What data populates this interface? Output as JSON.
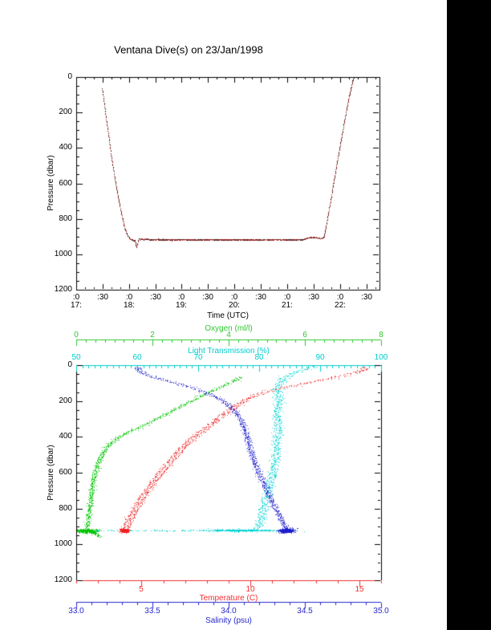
{
  "page": {
    "background": "#ffffff",
    "right_margin_color": "#000000"
  },
  "chart_data": [
    {
      "type": "line",
      "title": "Ventana Dive(s) on 23/Jan/1998",
      "xlabel": "Time (UTC)",
      "ylabel": "Pressure (dbar)",
      "x_range_hours": [
        17.0,
        22.75
      ],
      "y_range": [
        0,
        1200
      ],
      "y_axis_reversed": true,
      "y_major_ticks": [
        0,
        200,
        400,
        600,
        800,
        1000,
        1200
      ],
      "y_minor_step": 50,
      "x_minor_step_hours": 0.1666667,
      "x_ticks": [
        {
          "t": 17.0,
          "m": ":0",
          "h": "17:"
        },
        {
          "t": 17.5,
          "m": ":30"
        },
        {
          "t": 18.0,
          "m": ":0",
          "h": "18:"
        },
        {
          "t": 18.5,
          "m": ":30"
        },
        {
          "t": 19.0,
          "m": ":0",
          "h": "19:"
        },
        {
          "t": 19.5,
          "m": ":30"
        },
        {
          "t": 20.0,
          "m": ":0",
          "h": "20:"
        },
        {
          "t": 20.5,
          "m": ":30"
        },
        {
          "t": 21.0,
          "m": ":0",
          "h": "21:"
        },
        {
          "t": 21.5,
          "m": ":30"
        },
        {
          "t": 22.0,
          "m": ":0",
          "h": "22:"
        },
        {
          "t": 22.5,
          "m": ":30"
        }
      ],
      "series": [
        {
          "name": "dive-pressure-vs-time",
          "color": "#b23232",
          "marker_color": "#202020",
          "points": [
            [
              17.49,
              62
            ],
            [
              17.52,
              130
            ],
            [
              17.555,
              210
            ],
            [
              17.59,
              285
            ],
            [
              17.625,
              360
            ],
            [
              17.66,
              440
            ],
            [
              17.7,
              515
            ],
            [
              17.74,
              590
            ],
            [
              17.785,
              665
            ],
            [
              17.83,
              735
            ],
            [
              17.875,
              800
            ],
            [
              17.92,
              855
            ],
            [
              17.97,
              895
            ],
            [
              18.02,
              912
            ],
            [
              18.07,
              918
            ],
            [
              18.11,
              922
            ],
            [
              18.135,
              958
            ],
            [
              18.16,
              940
            ],
            [
              18.185,
              908
            ],
            [
              18.21,
              916
            ],
            [
              18.24,
              910
            ],
            [
              18.27,
              917
            ],
            [
              18.32,
              913
            ],
            [
              18.4,
              917
            ],
            [
              18.55,
              915
            ],
            [
              18.75,
              917
            ],
            [
              19.0,
              916
            ],
            [
              19.3,
              917
            ],
            [
              19.6,
              916
            ],
            [
              19.9,
              917
            ],
            [
              20.2,
              916
            ],
            [
              20.5,
              917
            ],
            [
              20.8,
              916
            ],
            [
              21.1,
              917
            ],
            [
              21.3,
              915
            ],
            [
              21.4,
              907
            ],
            [
              21.5,
              903
            ],
            [
              21.58,
              906
            ],
            [
              21.64,
              910
            ],
            [
              21.69,
              903
            ],
            [
              21.72,
              868
            ],
            [
              21.77,
              780
            ],
            [
              21.83,
              680
            ],
            [
              21.89,
              575
            ],
            [
              21.95,
              470
            ],
            [
              22.01,
              368
            ],
            [
              22.07,
              268
            ],
            [
              22.13,
              172
            ],
            [
              22.19,
              85
            ],
            [
              22.24,
              20
            ],
            [
              22.26,
              2
            ]
          ]
        }
      ]
    },
    {
      "type": "scatter",
      "ylabel": "Pressure (dbar)",
      "y_range": [
        0,
        1200
      ],
      "y_axis_reversed": true,
      "y_major_ticks": [
        0,
        200,
        400,
        600,
        800,
        1000,
        1200
      ],
      "y_minor_step": 50,
      "axes": [
        {
          "id": "oxygen",
          "label": "Oxygen (ml/l)",
          "color": "#2ec82e",
          "range": [
            0,
            8
          ],
          "major_ticks": [
            0,
            2,
            4,
            6,
            8
          ],
          "minor_step": 0.25,
          "tick_decimals": 0,
          "placement": "top-floating"
        },
        {
          "id": "light",
          "label": "Light Transmission (%)",
          "color": "#00cdcd",
          "range": [
            50,
            100
          ],
          "major_ticks": [
            50,
            60,
            70,
            80,
            90,
            100
          ],
          "minor_step": 1,
          "tick_decimals": 0,
          "placement": "top-frame"
        },
        {
          "id": "temperature",
          "label": "Temperature (C)",
          "color": "#f03030",
          "range": [
            2,
            16
          ],
          "major_ticks": [
            5,
            10,
            15
          ],
          "minor_step": 1,
          "tick_decimals": 0,
          "placement": "bottom-frame"
        },
        {
          "id": "salinity",
          "label": "Salinity (psu)",
          "color": "#2828cc",
          "range": [
            33.0,
            35.0
          ],
          "major_ticks": [
            33.0,
            33.5,
            34.0,
            34.5,
            35.0
          ],
          "minor_step": 0.1,
          "tick_decimals": 1,
          "placement": "bottom-floating"
        }
      ],
      "series": [
        {
          "name": "oxygen-profile",
          "axis": "oxygen",
          "color": "#00c400",
          "pair_offset_frac": 0.003,
          "jitter_frac": 0.004,
          "profile": [
            [
              4.3,
              65
            ],
            [
              4.15,
              85
            ],
            [
              3.95,
              105
            ],
            [
              3.7,
              128
            ],
            [
              3.45,
              152
            ],
            [
              3.2,
              178
            ],
            [
              2.95,
              205
            ],
            [
              2.7,
              232
            ],
            [
              2.45,
              260
            ],
            [
              2.2,
              288
            ],
            [
              1.95,
              316
            ],
            [
              1.7,
              342
            ],
            [
              1.45,
              362
            ],
            [
              1.25,
              385
            ],
            [
              1.05,
              410
            ],
            [
              0.9,
              436
            ],
            [
              0.78,
              464
            ],
            [
              0.68,
              494
            ],
            [
              0.6,
              526
            ],
            [
              0.55,
              560
            ],
            [
              0.5,
              596
            ],
            [
              0.46,
              634
            ],
            [
              0.43,
              672
            ],
            [
              0.4,
              712
            ],
            [
              0.375,
              752
            ],
            [
              0.35,
              792
            ],
            [
              0.325,
              832
            ],
            [
              0.3,
              872
            ],
            [
              0.285,
              910
            ]
          ],
          "bottom_cluster": {
            "value": 0.3,
            "pressure": 924,
            "value_sd": 0.13,
            "pressure_sd": 5,
            "tail": [
              [
                0.42,
                930
              ],
              [
                0.62,
                956
              ]
            ]
          }
        },
        {
          "name": "light-transmission-profile",
          "axis": "light",
          "color": "#00d2d2",
          "pair_offset_frac": 0.006,
          "jitter_frac": 0.006,
          "profile": [
            [
              89.2,
              6
            ],
            [
              88.0,
              18
            ],
            [
              86.5,
              32
            ],
            [
              85.2,
              48
            ],
            [
              84.2,
              66
            ],
            [
              83.6,
              86
            ],
            [
              83.2,
              108
            ],
            [
              83.0,
              132
            ],
            [
              83.1,
              158
            ],
            [
              83.3,
              186
            ],
            [
              83.2,
              216
            ],
            [
              83.0,
              248
            ],
            [
              82.9,
              282
            ],
            [
              83.05,
              318
            ],
            [
              83.15,
              355
            ],
            [
              82.95,
              392
            ],
            [
              82.75,
              430
            ],
            [
              82.85,
              468
            ],
            [
              82.7,
              508
            ],
            [
              82.5,
              548
            ],
            [
              82.25,
              590
            ],
            [
              81.95,
              632
            ],
            [
              81.65,
              674
            ],
            [
              81.35,
              716
            ],
            [
              81.05,
              758
            ],
            [
              80.75,
              800
            ],
            [
              80.45,
              840
            ],
            [
              80.1,
              878
            ],
            [
              79.5,
              912
            ]
          ],
          "bottom_band": {
            "pressure": 921,
            "pressure_sd": 2.0,
            "uniform_range": [
              52,
              86
            ],
            "dense_mean": 77,
            "dense_sd": 2.4
          }
        },
        {
          "name": "temperature-profile",
          "axis": "temperature",
          "color": "#ee2020",
          "pair_offset_frac": 0.007,
          "jitter_frac": 0.004,
          "profile": [
            [
              15.25,
              10
            ],
            [
              15.1,
              30
            ],
            [
              14.6,
              48
            ],
            [
              13.9,
              65
            ],
            [
              13.1,
              85
            ],
            [
              12.4,
              105
            ],
            [
              11.7,
              120
            ],
            [
              11.1,
              135
            ],
            [
              10.6,
              152
            ],
            [
              10.1,
              170
            ],
            [
              9.8,
              190
            ],
            [
              9.5,
              210
            ],
            [
              9.25,
              232
            ],
            [
              9.0,
              255
            ],
            [
              8.7,
              278
            ],
            [
              8.45,
              302
            ],
            [
              8.2,
              328
            ],
            [
              7.9,
              355
            ],
            [
              7.6,
              382
            ],
            [
              7.3,
              410
            ],
            [
              7.05,
              438
            ],
            [
              6.8,
              468
            ],
            [
              6.55,
              500
            ],
            [
              6.3,
              535
            ],
            [
              6.05,
              572
            ],
            [
              5.8,
              610
            ],
            [
              5.55,
              650
            ],
            [
              5.3,
              692
            ],
            [
              5.05,
              735
            ],
            [
              4.82,
              778
            ],
            [
              4.62,
              820
            ],
            [
              4.45,
              858
            ],
            [
              4.32,
              892
            ],
            [
              4.22,
              918
            ]
          ],
          "bottom_cluster": {
            "value": 4.2,
            "pressure": 922,
            "value_sd": 0.1,
            "pressure_sd": 5
          }
        },
        {
          "name": "salinity-profile",
          "axis": "salinity",
          "color": "#1c1ccc",
          "pair_offset_frac": 0.004,
          "jitter_frac": 0.004,
          "profile": [
            [
              33.4,
              8
            ],
            [
              33.41,
              28
            ],
            [
              33.45,
              50
            ],
            [
              33.53,
              72
            ],
            [
              33.63,
              95
            ],
            [
              33.73,
              118
            ],
            [
              33.82,
              142
            ],
            [
              33.9,
              168
            ],
            [
              33.96,
              196
            ],
            [
              34.0,
              226
            ],
            [
              34.04,
              258
            ],
            [
              34.07,
              292
            ],
            [
              34.09,
              328
            ],
            [
              34.105,
              365
            ],
            [
              34.12,
              402
            ],
            [
              34.13,
              440
            ],
            [
              34.145,
              480
            ],
            [
              34.16,
              522
            ],
            [
              34.18,
              565
            ],
            [
              34.2,
              610
            ],
            [
              34.225,
              655
            ],
            [
              34.25,
              700
            ],
            [
              34.275,
              745
            ],
            [
              34.3,
              790
            ],
            [
              34.33,
              835
            ],
            [
              34.355,
              878
            ],
            [
              34.375,
              915
            ]
          ],
          "bottom_cluster": {
            "value": 34.38,
            "pressure": 922,
            "value_sd": 0.025,
            "pressure_sd": 6
          }
        }
      ]
    }
  ]
}
